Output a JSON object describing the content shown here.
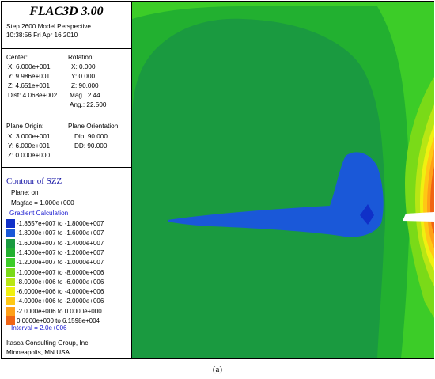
{
  "header": {
    "app_title": "FLAC3D 3.00",
    "step_line": "Step 2600  Model Perspective",
    "timestamp": "10:38:56 Fri Apr 16 2010"
  },
  "view": {
    "center_label": "Center:",
    "center_x": "X: 6.000e+001",
    "center_y": "Y: 9.986e+001",
    "center_z": "Z: 4.651e+001",
    "dist": "Dist: 4.068e+002",
    "rotation_label": "Rotation:",
    "rot_x": "X:   0.000",
    "rot_y": "Y:   0.000",
    "rot_z": "Z:  90.000",
    "mag": "Mag.:      2.44",
    "ang": "Ang.:  22.500"
  },
  "plane": {
    "origin_label": "Plane Origin:",
    "origin_x": "X: 3.000e+001",
    "origin_y": "Y: 6.000e+001",
    "origin_z": "Z: 0.000e+000",
    "orientation_label": "Plane Orientation:",
    "dip": "Dip:  90.000",
    "dd": "DD:  90.000"
  },
  "contour": {
    "title": "Contour of SZZ",
    "plane_on": "Plane: on",
    "magfac": "Magfac  =  1.000e+000",
    "gradient": "Gradient Calculation",
    "interval": "Interval = 2.0e+006",
    "legend": [
      {
        "label": "-1.8657e+007 to -1.8000e+007",
        "color": "#1030c8"
      },
      {
        "label": "-1.8000e+007 to -1.6000e+007",
        "color": "#1a58d8"
      },
      {
        "label": "-1.6000e+007 to -1.4000e+007",
        "color": "#1a9a40"
      },
      {
        "label": "-1.4000e+007 to -1.2000e+007",
        "color": "#22b030"
      },
      {
        "label": "-1.2000e+007 to -1.0000e+007",
        "color": "#3ccc28"
      },
      {
        "label": "-1.0000e+007 to -8.0000e+006",
        "color": "#7ada18"
      },
      {
        "label": "-8.0000e+006 to -6.0000e+006",
        "color": "#b8e614"
      },
      {
        "label": "-6.0000e+006 to -4.0000e+006",
        "color": "#f0f010"
      },
      {
        "label": "-4.0000e+006 to -2.0000e+006",
        "color": "#ffc814"
      },
      {
        "label": "-2.0000e+006 to  0.0000e+000",
        "color": "#ffa018"
      },
      {
        "label": " 0.0000e+000 to  6.1598e+004",
        "color": "#f06414"
      }
    ]
  },
  "footer": {
    "company": "Itasca Consulting Group, Inc.",
    "location": "Minneapolis, MN  USA"
  },
  "caption": "(a)"
}
